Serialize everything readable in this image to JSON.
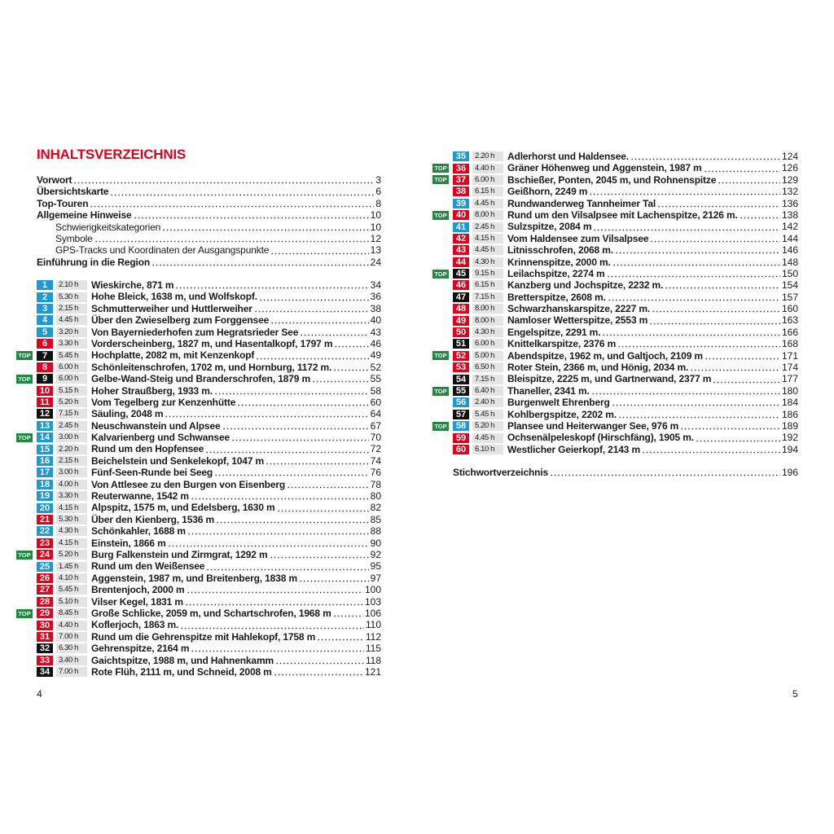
{
  "heading": "INHALTSVERZEICHNIS",
  "colors": {
    "blue": "#1a9ad6",
    "red": "#e2001a",
    "black": "#111111",
    "top": "#1d8a3e",
    "heading": "#e2001a"
  },
  "top_label": "TOP",
  "front_matter": [
    {
      "title": "Vorwort",
      "page": "3",
      "level": 1
    },
    {
      "title": "Übersichtskarte",
      "page": "6",
      "level": 1
    },
    {
      "title": "Top-Touren",
      "page": "8",
      "level": 1
    },
    {
      "title": "Allgemeine Hinweise",
      "page": "10",
      "level": 1
    },
    {
      "title": "Schwierigkeitskategorien",
      "page": "10",
      "level": 2
    },
    {
      "title": "Symbole",
      "page": "12",
      "level": 2
    },
    {
      "title": "GPS-Tracks und Koordinaten der Ausgangspunkte",
      "page": "13",
      "level": 2
    },
    {
      "title": "Einführung in die Region",
      "page": "24",
      "level": 1
    }
  ],
  "tours": [
    {
      "num": "1",
      "difficulty": "blue",
      "time": "2.10 h",
      "title": "Wieskirche, 871 m",
      "page": "34",
      "top": false
    },
    {
      "num": "2",
      "difficulty": "blue",
      "time": "5.30 h",
      "title": "Hohe Bleick, 1638 m, und Wolfskopf.",
      "page": "36",
      "top": false
    },
    {
      "num": "3",
      "difficulty": "blue",
      "time": "2.15 h",
      "title": "Schmutterweiher und Huttlerweiher",
      "page": "38",
      "top": false
    },
    {
      "num": "4",
      "difficulty": "blue",
      "time": "4.45 h",
      "title": "Über den Zwieselberg zum Forggensee",
      "page": "40",
      "top": false
    },
    {
      "num": "5",
      "difficulty": "blue",
      "time": "3.20 h",
      "title": "Von Bayerniederhofen zum Hegratsrieder See",
      "page": "43",
      "top": false
    },
    {
      "num": "6",
      "difficulty": "red",
      "time": "3.30 h",
      "title": "Vorderscheinberg, 1827 m, und Hasentalkopf, 1797 m",
      "page": "46",
      "top": false
    },
    {
      "num": "7",
      "difficulty": "black",
      "time": "5.45 h",
      "title": "Hochplatte, 2082 m, mit Kenzenkopf",
      "page": "49",
      "top": true
    },
    {
      "num": "8",
      "difficulty": "red",
      "time": "6.00 h",
      "title": "Schönleitenschrofen, 1702 m, und Hornburg, 1172 m.",
      "page": "52",
      "top": false
    },
    {
      "num": "9",
      "difficulty": "black",
      "time": "6.00 h",
      "title": "Gelbe-Wand-Steig und Branderschrofen, 1879 m",
      "page": "55",
      "top": true
    },
    {
      "num": "10",
      "difficulty": "red",
      "time": "5.15 h",
      "title": "Hoher Straußberg, 1933 m.",
      "page": "58",
      "top": false
    },
    {
      "num": "11",
      "difficulty": "red",
      "time": "5.20 h",
      "title": "Vom Tegelberg zur Kenzenhütte",
      "page": "60",
      "top": false
    },
    {
      "num": "12",
      "difficulty": "black",
      "time": "7.15 h",
      "title": "Säuling, 2048 m",
      "page": "64",
      "top": false
    },
    {
      "num": "13",
      "difficulty": "blue",
      "time": "2.45 h",
      "title": "Neuschwanstein und Alpsee",
      "page": "67",
      "top": false
    },
    {
      "num": "14",
      "difficulty": "blue",
      "time": "3.00 h",
      "title": "Kalvarienberg und Schwansee",
      "page": "70",
      "top": true
    },
    {
      "num": "15",
      "difficulty": "blue",
      "time": "2.20 h",
      "title": "Rund um den Hopfensee",
      "page": "72",
      "top": false
    },
    {
      "num": "16",
      "difficulty": "blue",
      "time": "2.15 h",
      "title": "Beichelstein und Senkelekopf, 1047 m",
      "page": "74",
      "top": false
    },
    {
      "num": "17",
      "difficulty": "blue",
      "time": "3.00 h",
      "title": "Fünf-Seen-Runde bei Seeg",
      "page": "76",
      "top": false
    },
    {
      "num": "18",
      "difficulty": "blue",
      "time": "4.00 h",
      "title": "Von Attlesee zu den Burgen von Eisenberg",
      "page": "78",
      "top": false
    },
    {
      "num": "19",
      "difficulty": "blue",
      "time": "3.30 h",
      "title": "Reuterwanne, 1542 m",
      "page": "80",
      "top": false
    },
    {
      "num": "20",
      "difficulty": "blue",
      "time": "4.15 h",
      "title": "Alpspitz, 1575 m, und Edelsberg, 1630 m",
      "page": "82",
      "top": false
    },
    {
      "num": "21",
      "difficulty": "red",
      "time": "5.30 h",
      "title": "Über den Kienberg, 1536 m",
      "page": "85",
      "top": false
    },
    {
      "num": "22",
      "difficulty": "blue",
      "time": "4.30 h",
      "title": "Schönkahler, 1688 m",
      "page": "88",
      "top": false
    },
    {
      "num": "23",
      "difficulty": "red",
      "time": "4.15 h",
      "title": "Einstein, 1866 m",
      "page": "90",
      "top": false
    },
    {
      "num": "24",
      "difficulty": "red",
      "time": "5.20 h",
      "title": "Burg Falkenstein und Zirmgrat, 1292 m",
      "page": "92",
      "top": true
    },
    {
      "num": "25",
      "difficulty": "blue",
      "time": "1.45 h",
      "title": "Rund um den Weißensee",
      "page": "95",
      "top": false
    },
    {
      "num": "26",
      "difficulty": "red",
      "time": "4.10 h",
      "title": "Aggenstein, 1987 m, und Breitenberg, 1838 m",
      "page": "97",
      "top": false
    },
    {
      "num": "27",
      "difficulty": "red",
      "time": "5.45 h",
      "title": "Brentenjoch, 2000 m",
      "page": "100",
      "top": false
    },
    {
      "num": "28",
      "difficulty": "red",
      "time": "5.10 h",
      "title": "Vilser Kegel, 1831 m",
      "page": "103",
      "top": false
    },
    {
      "num": "29",
      "difficulty": "red",
      "time": "8.45 h",
      "title": "Große Schlicke, 2059 m, und Schartschrofen, 1968 m",
      "page": "106",
      "top": true
    },
    {
      "num": "30",
      "difficulty": "red",
      "time": "4.40 h",
      "title": "Koflerjoch, 1863 m.",
      "page": "110",
      "top": false
    },
    {
      "num": "31",
      "difficulty": "red",
      "time": "7.00 h",
      "title": "Rund um die Gehrenspitze mit Hahlekopf, 1758 m",
      "page": "112",
      "top": false
    },
    {
      "num": "32",
      "difficulty": "black",
      "time": "6.30 h",
      "title": "Gehrenspitze, 2164 m",
      "page": "115",
      "top": false
    },
    {
      "num": "33",
      "difficulty": "red",
      "time": "3.40 h",
      "title": "Gaichtspitze, 1988 m, und Hahnenkamm",
      "page": "118",
      "top": false
    },
    {
      "num": "34",
      "difficulty": "black",
      "time": "7.00 h",
      "title": "Rote Flüh, 2111 m, und Schneid, 2008 m",
      "page": "121",
      "top": false
    },
    {
      "num": "35",
      "difficulty": "blue",
      "time": "2.20 h",
      "title": "Adlerhorst und Haldensee.",
      "page": "124",
      "top": false
    },
    {
      "num": "36",
      "difficulty": "red",
      "time": "4.40 h",
      "title": "Gräner Höhenweg und Aggenstein, 1987 m",
      "page": "126",
      "top": true
    },
    {
      "num": "37",
      "difficulty": "red",
      "time": "6.00 h",
      "title": "Bschießer, Ponten, 2045 m, und Rohnenspitze",
      "page": "129",
      "top": true
    },
    {
      "num": "38",
      "difficulty": "red",
      "time": "6.15 h",
      "title": "Geißhorn, 2249 m",
      "page": "132",
      "top": false
    },
    {
      "num": "39",
      "difficulty": "blue",
      "time": "4.45 h",
      "title": "Rundwanderweg Tannheimer Tal",
      "page": "136",
      "top": false
    },
    {
      "num": "40",
      "difficulty": "red",
      "time": "8.00 h",
      "title": "Rund um den Vilsalpsee mit Lachenspitze, 2126 m.",
      "page": "138",
      "top": true
    },
    {
      "num": "41",
      "difficulty": "blue",
      "time": "2.45 h",
      "title": "Sulzspitze, 2084 m",
      "page": "142",
      "top": false
    },
    {
      "num": "42",
      "difficulty": "red",
      "time": "4.15 h",
      "title": "Vom Haldensee zum Vilsalpsee",
      "page": "144",
      "top": false
    },
    {
      "num": "43",
      "difficulty": "red",
      "time": "4.45 h",
      "title": "Litnisschrofen, 2068 m.",
      "page": "146",
      "top": false
    },
    {
      "num": "44",
      "difficulty": "red",
      "time": "4.30 h",
      "title": "Krinnenspitze, 2000 m.",
      "page": "148",
      "top": false
    },
    {
      "num": "45",
      "difficulty": "black",
      "time": "9.15 h",
      "title": "Leilachspitze, 2274 m",
      "page": "150",
      "top": true
    },
    {
      "num": "46",
      "difficulty": "red",
      "time": "6.15 h",
      "title": "Kanzberg und Jochspitze, 2232 m.",
      "page": "154",
      "top": false
    },
    {
      "num": "47",
      "difficulty": "black",
      "time": "7.15 h",
      "title": "Bretterspitze, 2608 m.",
      "page": "157",
      "top": false
    },
    {
      "num": "48",
      "difficulty": "red",
      "time": "8.00 h",
      "title": "Schwarzhanskarspitze, 2227 m.",
      "page": "160",
      "top": false
    },
    {
      "num": "49",
      "difficulty": "red",
      "time": "8.00 h",
      "title": "Namloser Wetterspitze, 2553 m",
      "page": "163",
      "top": false
    },
    {
      "num": "50",
      "difficulty": "red",
      "time": "4.30 h",
      "title": "Engelspitze, 2291 m.",
      "page": "166",
      "top": false
    },
    {
      "num": "51",
      "difficulty": "black",
      "time": "6.00 h",
      "title": "Knittelkarspitze, 2376 m",
      "page": "168",
      "top": false
    },
    {
      "num": "52",
      "difficulty": "red",
      "time": "5.00 h",
      "title": "Abendspitze, 1962 m, und Galtjoch, 2109 m",
      "page": "171",
      "top": true
    },
    {
      "num": "53",
      "difficulty": "red",
      "time": "6.50 h",
      "title": "Roter Stein, 2366 m, und Hönig, 2034 m.",
      "page": "174",
      "top": false
    },
    {
      "num": "54",
      "difficulty": "black",
      "time": "7.15 h",
      "title": "Bleispitze, 2225 m, und Gartnerwand, 2377 m",
      "page": "177",
      "top": false
    },
    {
      "num": "55",
      "difficulty": "black",
      "time": "6.40 h",
      "title": "Thaneller, 2341 m.",
      "page": "180",
      "top": true
    },
    {
      "num": "56",
      "difficulty": "blue",
      "time": "2.40 h",
      "title": "Burgenwelt Ehrenberg",
      "page": "184",
      "top": false
    },
    {
      "num": "57",
      "difficulty": "black",
      "time": "5.45 h",
      "title": "Kohlbergspitze, 2202 m.",
      "page": "186",
      "top": false
    },
    {
      "num": "58",
      "difficulty": "blue",
      "time": "5.20 h",
      "title": "Plansee und Heiterwanger See, 976 m",
      "page": "189",
      "top": true
    },
    {
      "num": "59",
      "difficulty": "red",
      "time": "4.45 h",
      "title": "Ochsenälpeleskopf (Hirschfäng), 1905 m.",
      "page": "192",
      "top": false
    },
    {
      "num": "60",
      "difficulty": "red",
      "time": "6.10 h",
      "title": "Westlicher Geierkopf, 2143 m",
      "page": "194",
      "top": false
    }
  ],
  "index": {
    "title": "Stichwortverzeichnis",
    "page": "196"
  },
  "page_numbers": {
    "left": "4",
    "right": "5"
  }
}
